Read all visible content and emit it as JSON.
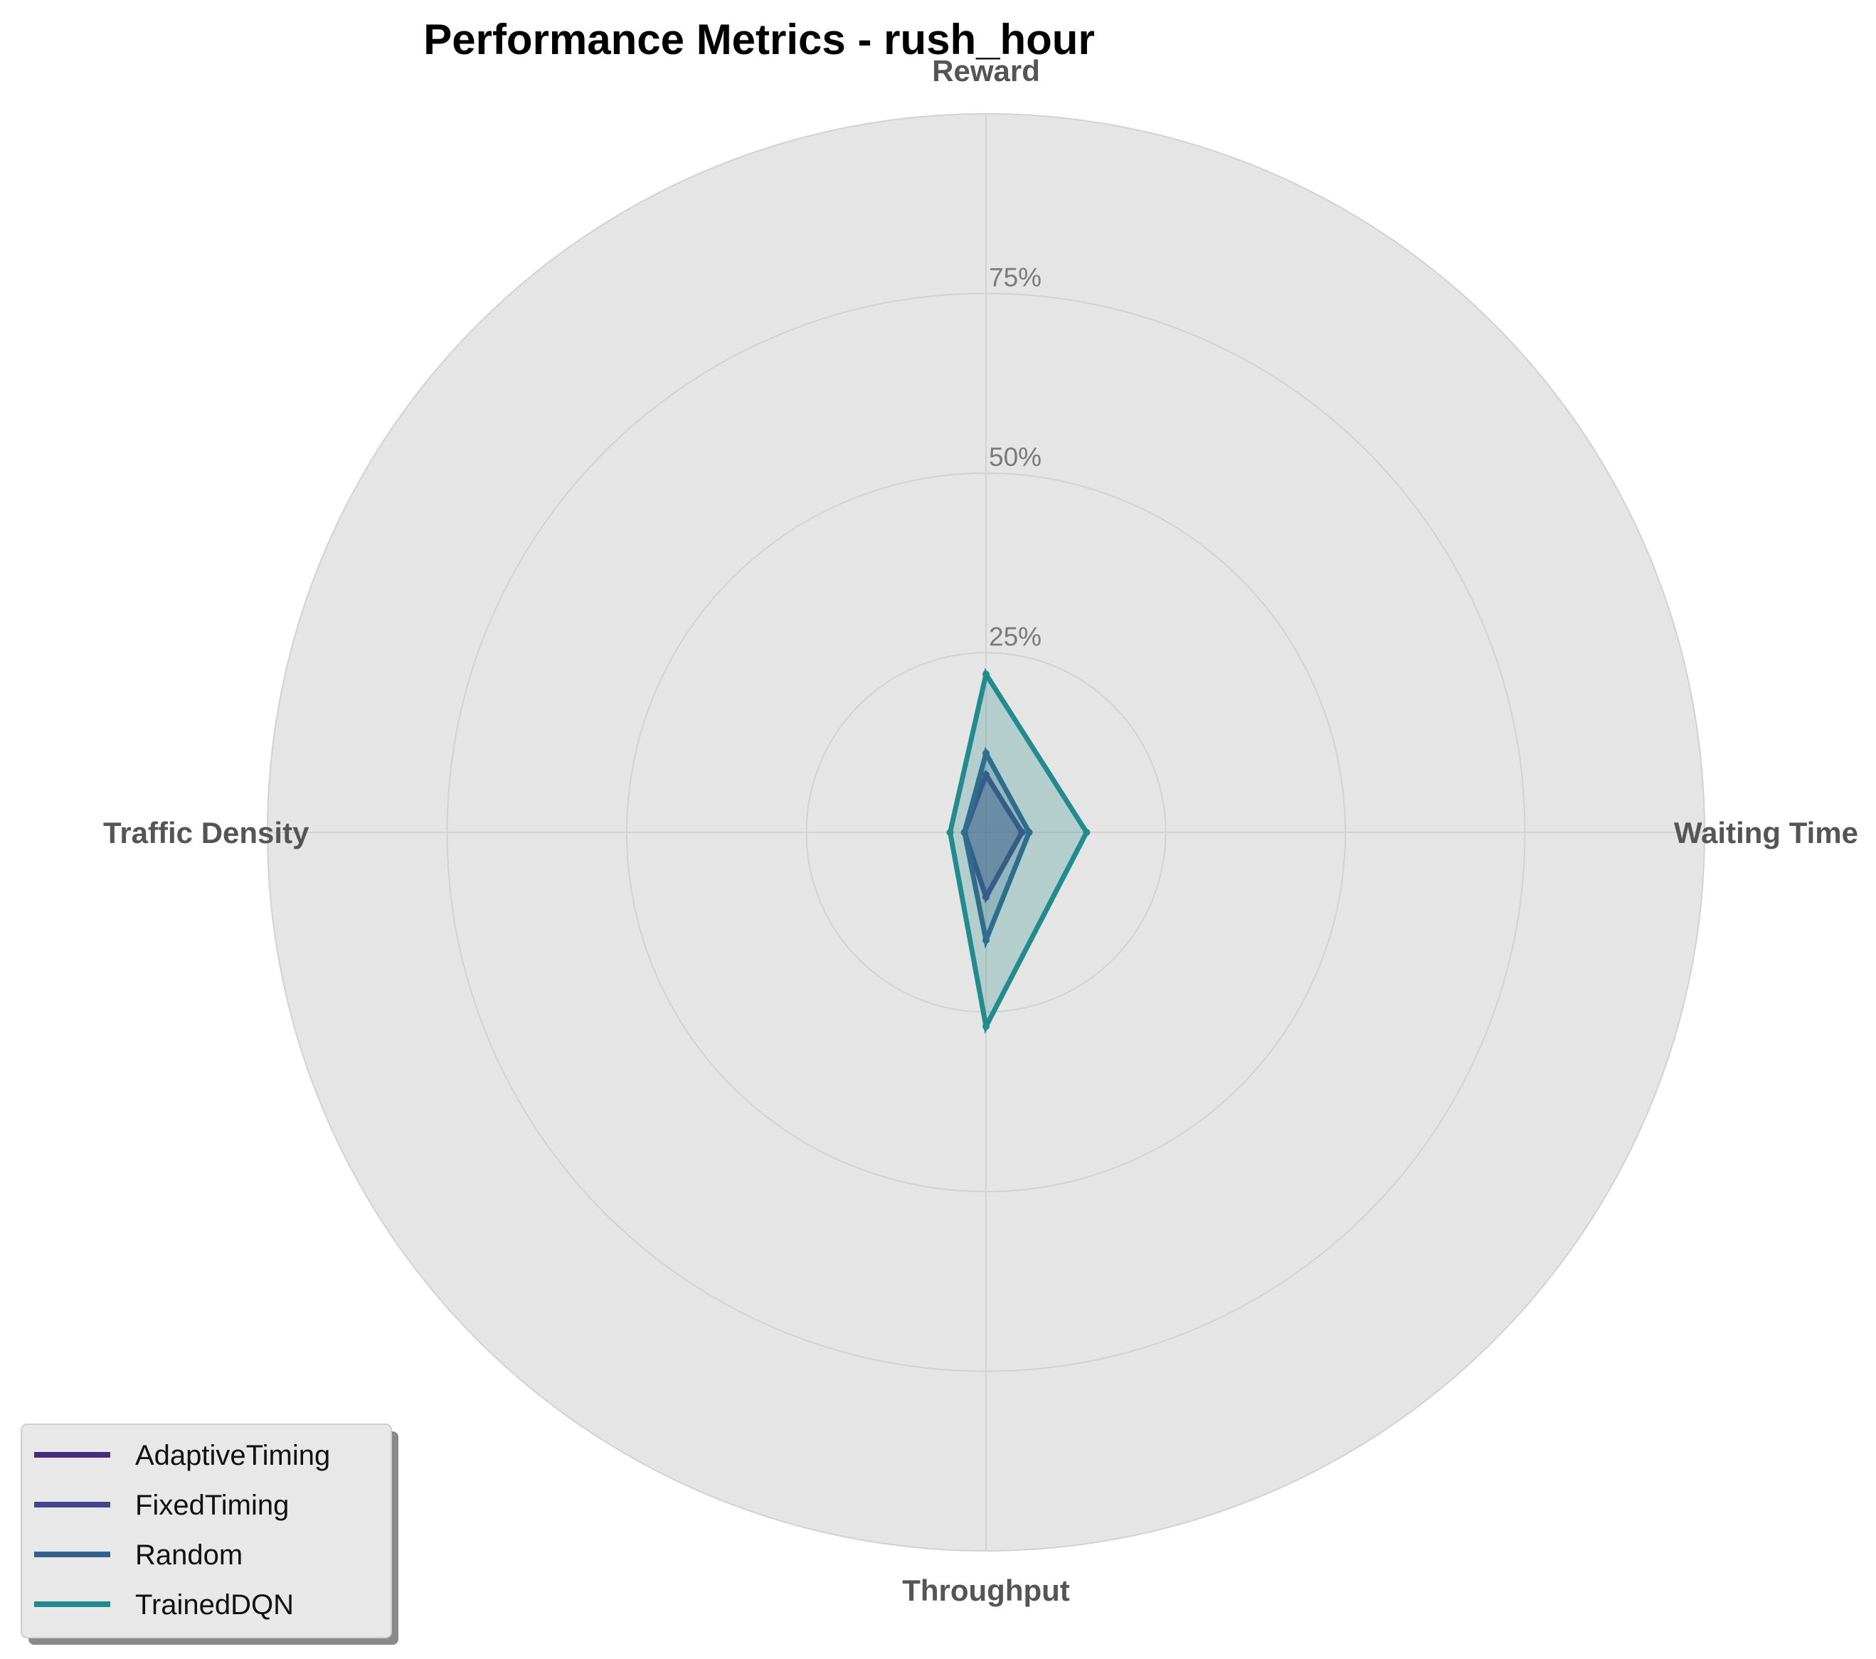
{
  "chart_data": {
    "type": "radar",
    "title": "Performance Metrics - rush_hour",
    "axes": [
      "Reward",
      "Waiting Time",
      "Throughput",
      "Traffic Density"
    ],
    "rlim": [
      0,
      100
    ],
    "rticks": [
      25,
      50,
      75
    ],
    "rtick_labels": [
      "25%",
      "50%",
      "75%"
    ],
    "grid": true,
    "legend_position": "lower-left",
    "background_color": "#e5e5e5",
    "series": [
      {
        "name": "AdaptiveTiming",
        "values": [
          8,
          5,
          9,
          3
        ],
        "color": "#472c7a"
      },
      {
        "name": "FixedTiming",
        "values": [
          8,
          5,
          9,
          3
        ],
        "color": "#3f4788"
      },
      {
        "name": "Random",
        "values": [
          11,
          6,
          15,
          3
        ],
        "color": "#33638d"
      },
      {
        "name": "TrainedDQN",
        "values": [
          22,
          14,
          27,
          5
        ],
        "color": "#238a8d"
      }
    ]
  }
}
